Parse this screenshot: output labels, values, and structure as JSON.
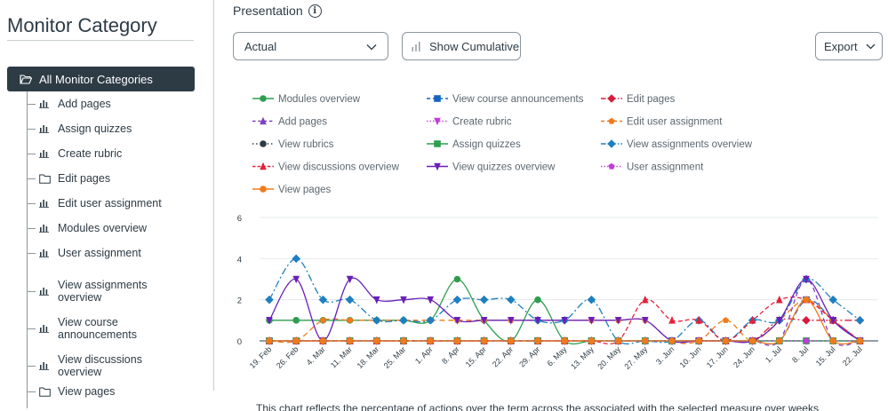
{
  "sidebar": {
    "title": "Monitor Category",
    "root_label": "All Monitor Categories",
    "items": [
      {
        "label": "Add pages",
        "icon": "bar-chart-icon"
      },
      {
        "label": "Assign quizzes",
        "icon": "bar-chart-icon"
      },
      {
        "label": "Create rubric",
        "icon": "bar-chart-icon"
      },
      {
        "label": "Edit pages",
        "icon": "folder-icon"
      },
      {
        "label": "Edit user assignment",
        "icon": "bar-chart-icon"
      },
      {
        "label": "Modules overview",
        "icon": "bar-chart-icon"
      },
      {
        "label": "User assignment",
        "icon": "bar-chart-icon"
      },
      {
        "label": "View assignments overview",
        "icon": "bar-chart-icon"
      },
      {
        "label": "View course announcements",
        "icon": "bar-chart-icon"
      },
      {
        "label": "View discussions overview",
        "icon": "bar-chart-icon"
      },
      {
        "label": "View pages",
        "icon": "folder-icon"
      }
    ]
  },
  "main": {
    "title": "Presentation",
    "view_select": "Actual",
    "cumulative_button": "Show Cumulative",
    "export_button": "Export",
    "caption": "This chart reflects the percentage of actions over the term across the associated with the selected measure over weeks"
  },
  "chart_data": {
    "type": "line",
    "x": [
      "19. Feb",
      "26. Feb",
      "4. Mar",
      "11. Mar",
      "18. Mar",
      "25. Mar",
      "1. Apr",
      "8. Apr",
      "15. Apr",
      "22. Apr",
      "29. Apr",
      "6. May",
      "13. May",
      "20. May",
      "27. May",
      "3. Jun",
      "10. Jun",
      "17. Jun",
      "24. Jun",
      "1. Jul",
      "8. Jul",
      "15. Jul",
      "22. Jul"
    ],
    "ylim": [
      0,
      6
    ],
    "yticks": [
      0,
      2,
      4,
      6
    ],
    "series": [
      {
        "name": "Modules overview",
        "color": "#2e9e4f",
        "dash": "",
        "marker": "circle",
        "values": [
          1,
          1,
          1,
          1,
          1,
          1,
          1,
          3,
          1,
          0,
          2,
          0,
          0,
          0,
          0,
          0,
          0,
          0,
          0,
          0,
          0,
          0,
          0
        ]
      },
      {
        "name": "View course announcements",
        "color": "#1565c0",
        "dash": "6,4",
        "marker": "square",
        "values": [
          0,
          0,
          0,
          0,
          0,
          0,
          0,
          0,
          0,
          0,
          0,
          0,
          0,
          0,
          0,
          0,
          0,
          0,
          0,
          0,
          2,
          1,
          0
        ]
      },
      {
        "name": "Edit pages",
        "color": "#d81b3c",
        "dash": "8,3,2,3",
        "marker": "diamond",
        "values": [
          0,
          0,
          0,
          0,
          0,
          0,
          0,
          0,
          0,
          0,
          0,
          0,
          0,
          0,
          0,
          0,
          0,
          0,
          0,
          1,
          1,
          1,
          1
        ]
      },
      {
        "name": "Add pages",
        "color": "#7b3fbf",
        "dash": "5,4",
        "marker": "triangle",
        "values": [
          0,
          0,
          0,
          0,
          0,
          0,
          0,
          0,
          0,
          0,
          0,
          0,
          0,
          0,
          0,
          0,
          0,
          0,
          0,
          0,
          3,
          0,
          0
        ]
      },
      {
        "name": "Create rubric",
        "color": "#c23cd8",
        "dash": "2,3",
        "marker": "triangle-down",
        "values": [
          0,
          0,
          0,
          0,
          0,
          0,
          0,
          0,
          0,
          0,
          0,
          0,
          0,
          0,
          0,
          0,
          0,
          0,
          0,
          0,
          0,
          0,
          0
        ]
      },
      {
        "name": "Edit user assignment",
        "color": "#f07b1d",
        "dash": "6,4",
        "marker": "pentagon",
        "values": [
          0,
          0,
          1,
          1,
          1,
          1,
          1,
          1,
          1,
          1,
          1,
          1,
          1,
          1,
          1,
          0,
          0,
          1,
          0,
          1,
          2,
          1,
          0
        ]
      },
      {
        "name": "View rubrics",
        "color": "#2d3b45",
        "dash": "2,4",
        "marker": "circle",
        "values": [
          0,
          0,
          0,
          0,
          0,
          0,
          0,
          0,
          0,
          0,
          0,
          0,
          0,
          0,
          0,
          0,
          0,
          0,
          0,
          0,
          0,
          0,
          0
        ]
      },
      {
        "name": "Assign quizzes",
        "color": "#2e9e4f",
        "dash": "",
        "marker": "square",
        "values": [
          0,
          0,
          0,
          0,
          0,
          0,
          0,
          0,
          0,
          0,
          0,
          0,
          0,
          0,
          0,
          0,
          0,
          0,
          0,
          0,
          0,
          0,
          0
        ]
      },
      {
        "name": "View assignments overview",
        "color": "#1f7fbf",
        "dash": "8,3,2,3",
        "marker": "diamond",
        "values": [
          2,
          4,
          2,
          2,
          1,
          1,
          1,
          2,
          2,
          2,
          1,
          1,
          2,
          0,
          0,
          0,
          1,
          0,
          1,
          1,
          3,
          2,
          1
        ]
      },
      {
        "name": "View discussions overview",
        "color": "#e5203a",
        "dash": "5,3",
        "marker": "triangle",
        "values": [
          0,
          0,
          0,
          0,
          0,
          0,
          0,
          0,
          0,
          0,
          0,
          0,
          0,
          0,
          2,
          1,
          1,
          0,
          1,
          2,
          2,
          1,
          0
        ]
      },
      {
        "name": "View quizzes overview",
        "color": "#6a1fb8",
        "dash": "",
        "marker": "triangle-down",
        "values": [
          1,
          3,
          0,
          3,
          2,
          2,
          2,
          1,
          1,
          1,
          1,
          1,
          1,
          1,
          1,
          0,
          0,
          0,
          0,
          1,
          3,
          1,
          0
        ]
      },
      {
        "name": "User assignment",
        "color": "#c23cd8",
        "dash": "2,3",
        "marker": "pentagon",
        "values": [
          0,
          0,
          0,
          0,
          0,
          0,
          0,
          0,
          0,
          0,
          0,
          0,
          0,
          0,
          0,
          0,
          0,
          0,
          0,
          0,
          0,
          0,
          0
        ]
      },
      {
        "name": "View pages",
        "color": "#f07b1d",
        "dash": "",
        "marker": "circle",
        "values": [
          0,
          0,
          0,
          0,
          0,
          0,
          0,
          0,
          0,
          0,
          0,
          0,
          0,
          0,
          0,
          0,
          0,
          0,
          0,
          0,
          2,
          0,
          0
        ]
      }
    ]
  }
}
